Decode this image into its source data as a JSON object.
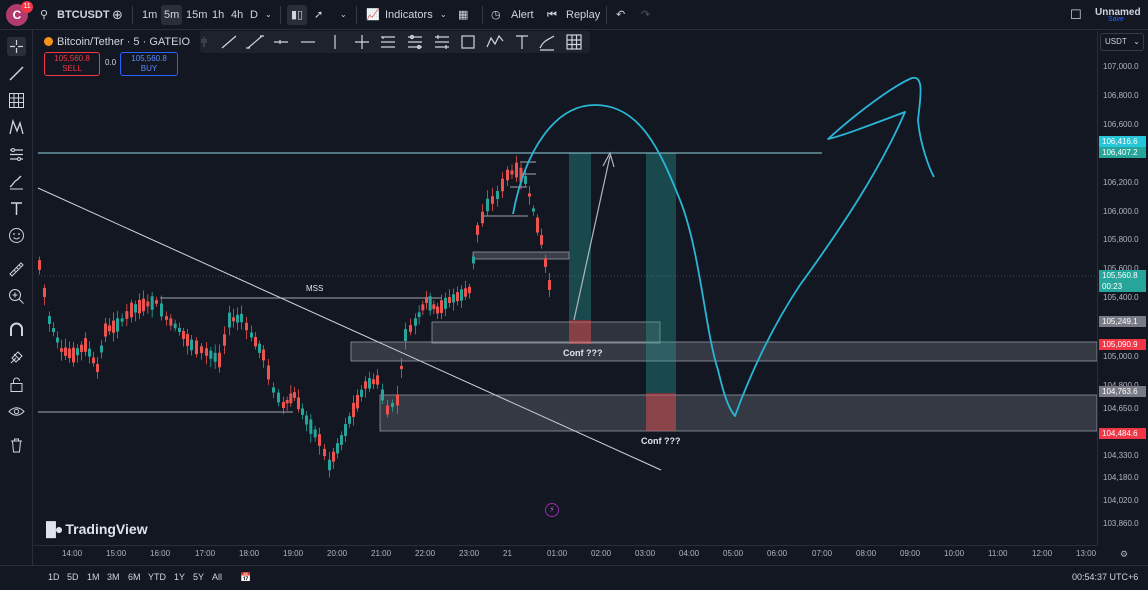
{
  "header": {
    "avatar_letter": "C",
    "notification_count": "11",
    "symbol": "BTCUSDT",
    "intervals": [
      "1m",
      "5m",
      "15m",
      "1h",
      "4h",
      "D"
    ],
    "active_interval": "5m",
    "indicators_label": "Indicators",
    "alert_label": "Alert",
    "replay_label": "Replay",
    "layout_name": "Unnamed",
    "save_label": "Save"
  },
  "legend": {
    "title": "Bitcoin/Tether · 5 · GATEIO",
    "sell_price": "105,560.8",
    "sell_label": "SELL",
    "spread": "0.0",
    "buy_price": "105,560.8",
    "buy_label": "BUY"
  },
  "price_axis": {
    "currency": "USDT",
    "ticks": [
      "107,000.0",
      "106,800.0",
      "106,600.0",
      "106,200.0",
      "106,000.0",
      "105,800.0",
      "105,600.0",
      "105,400.0",
      "105,000.0",
      "104,800.0",
      "104,650.0",
      "104,330.0",
      "104,180.0",
      "104,020.0",
      "103,860.0"
    ],
    "labels": [
      {
        "text": "106,416.6",
        "color": "#26c6da"
      },
      {
        "text": "106,407.2",
        "color": "#26a69a"
      },
      {
        "text": "105,560.8",
        "color": "#26a69a"
      },
      {
        "text": "00:23",
        "color": "#26a69a"
      },
      {
        "text": "105,249.1",
        "color": "#787b86"
      },
      {
        "text": "105,090.9",
        "color": "#f23645"
      },
      {
        "text": "104,763.6",
        "color": "#787b86"
      },
      {
        "text": "104,484.6",
        "color": "#f23645"
      }
    ]
  },
  "time_axis": [
    "14:00",
    "15:00",
    "16:00",
    "17:00",
    "18:00",
    "19:00",
    "20:00",
    "21:00",
    "22:00",
    "23:00",
    "21",
    "01:00",
    "02:00",
    "03:00",
    "04:00",
    "05:00",
    "06:00",
    "07:00",
    "08:00",
    "09:00",
    "10:00",
    "11:00",
    "12:00",
    "13:00"
  ],
  "annotations": {
    "mss": "MSS",
    "conf_1": "Conf ???",
    "conf_2": "Conf ???"
  },
  "watermark": "TradingView",
  "bottom": {
    "ranges": [
      "1D",
      "5D",
      "1M",
      "3M",
      "6M",
      "YTD",
      "1Y",
      "5Y",
      "All"
    ],
    "clock": "00:54:37 UTC+6"
  },
  "colors": {
    "bull": "#26a69a",
    "bear": "#ef5350",
    "hand_drawn": "#29b6d6",
    "background": "#131722"
  }
}
